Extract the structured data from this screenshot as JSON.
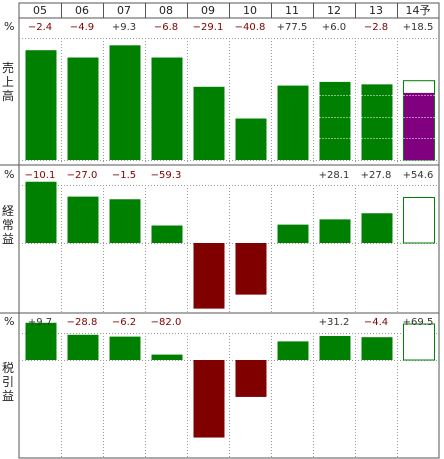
{
  "chart_data": {
    "type": "bar",
    "categories": [
      "05",
      "06",
      "07",
      "08",
      "09",
      "10",
      "11",
      "12",
      "13",
      "14予"
    ],
    "forecast_index": 9,
    "colors": {
      "actual": "#008000",
      "negative": "#800000",
      "forecast_fill": "#ffffff",
      "forecast_border": "#008000",
      "forecast_highlight": "#800080",
      "change_negative": "#800000",
      "change_positive": "#333333"
    },
    "panels": [
      {
        "title": "売上高",
        "unit": "%",
        "values": [
          90,
          84,
          94,
          84,
          60,
          34,
          61,
          64,
          62,
          65
        ],
        "forecast_highlight_value": 55,
        "ylim": [
          0,
          100
        ],
        "changes": [
          "−2.4",
          "−4.9",
          "+9.3",
          "−6.8",
          "−29.1",
          "−40.8",
          "+77.5",
          "+6.0",
          "−2.8",
          "+18.5"
        ]
      },
      {
        "title": "経常益",
        "unit": "%",
        "values": [
          70,
          53,
          50,
          20,
          -75,
          -59,
          21,
          27,
          34,
          52
        ],
        "ylim": [
          -80,
          80
        ],
        "changes": [
          "−10.1",
          "−27.0",
          "−1.5",
          "−59.3",
          "",
          "",
          "",
          "+28.1",
          "+27.8",
          "+54.6"
        ]
      },
      {
        "title": "税引益",
        "unit": "%",
        "values": [
          62,
          42,
          39,
          9,
          -126,
          -60,
          31,
          40,
          38,
          60
        ],
        "ylim": [
          -130,
          80
        ],
        "changes": [
          "+9.7",
          "−28.8",
          "−6.2",
          "−82.0",
          "",
          "",
          "",
          "+31.2",
          "−4.4",
          "+69.5"
        ]
      }
    ]
  }
}
